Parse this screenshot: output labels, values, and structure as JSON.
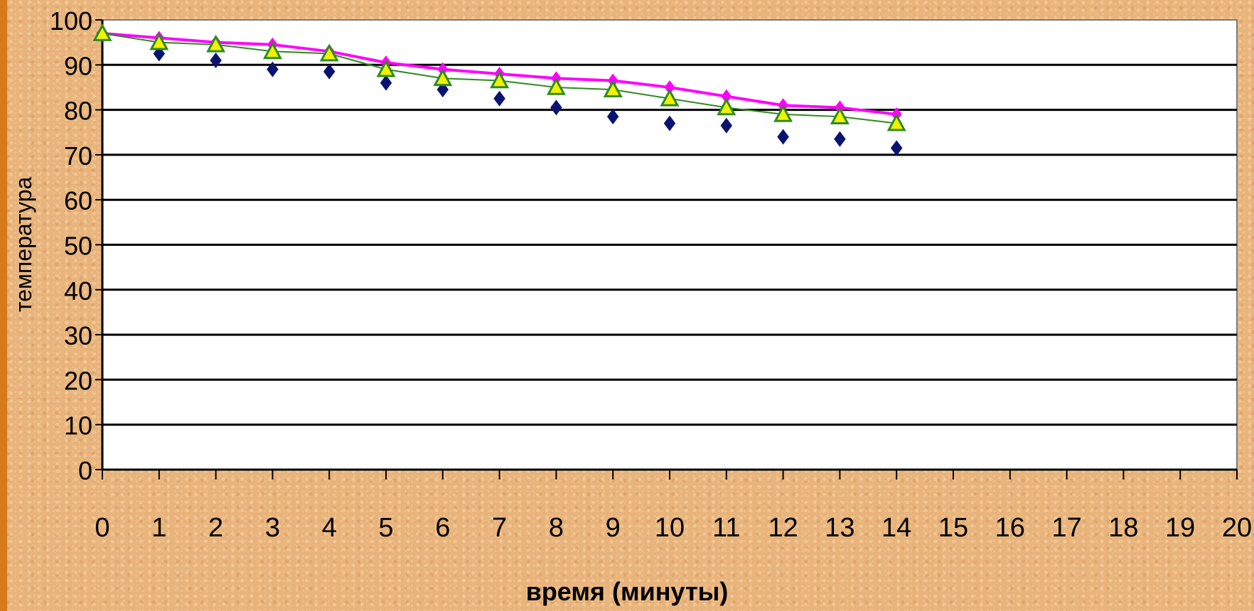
{
  "chart_data": {
    "type": "line",
    "title": "",
    "xlabel": "время (минуты)",
    "ylabel": "температура",
    "xlim": [
      0,
      20
    ],
    "ylim": [
      0,
      100
    ],
    "x_ticks": [
      0,
      1,
      2,
      3,
      4,
      5,
      6,
      7,
      8,
      9,
      10,
      11,
      12,
      13,
      14,
      15,
      16,
      17,
      18,
      19,
      20
    ],
    "y_ticks": [
      0,
      10,
      20,
      30,
      40,
      50,
      60,
      70,
      80,
      90,
      100
    ],
    "grid": "horizontal",
    "x": [
      0,
      1,
      2,
      3,
      4,
      5,
      6,
      7,
      8,
      9,
      10,
      11,
      12,
      13,
      14
    ],
    "series": [
      {
        "values": [
          97,
          92.5,
          91,
          89,
          88.5,
          86,
          84.5,
          82.5,
          80.5,
          78.5,
          77,
          76.5,
          74,
          73.5,
          71.5
        ],
        "color": "#0a1470",
        "marker": "diamond",
        "line": false
      },
      {
        "values": [
          97,
          96,
          95,
          94.5,
          93,
          90.5,
          89,
          88,
          87,
          86.5,
          85,
          83,
          81,
          80.5,
          79
        ],
        "color": "#ff00ff",
        "marker": "diamond",
        "line": true
      },
      {
        "values": [
          97,
          95,
          94.5,
          93,
          92.5,
          89,
          87,
          86.5,
          85,
          84.5,
          82.5,
          80.5,
          79,
          78.5,
          77
        ],
        "color": "#2e8b1e",
        "fill": "#f2f200",
        "marker": "triangle",
        "line": true
      }
    ]
  }
}
